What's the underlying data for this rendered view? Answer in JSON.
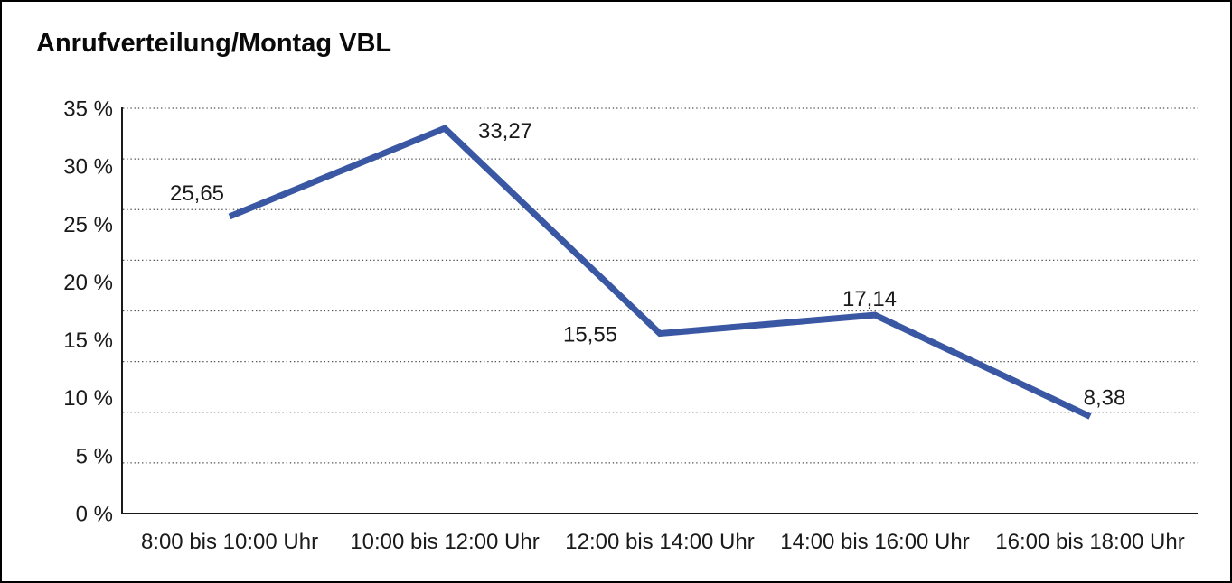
{
  "panel": {
    "title": "Anrufverteilung/Montag VBL"
  },
  "chart_data": {
    "type": "line",
    "title": "Anrufverteilung/Montag VBL",
    "categories": [
      "8:00 bis 10:00 Uhr",
      "10:00 bis 12:00 Uhr",
      "12:00 bis 14:00 Uhr",
      "14:00 bis 16:00 Uhr",
      "16:00 bis 18:00 Uhr"
    ],
    "series": [
      {
        "name": "Anrufverteilung Montag VBL",
        "values": [
          25.65,
          33.27,
          15.55,
          17.14,
          8.38
        ],
        "labels": [
          "25,65",
          "33,27",
          "15,55",
          "17,14",
          "8,38"
        ],
        "color": "#3A57A3"
      }
    ],
    "xlabel": "",
    "ylabel": "",
    "ylim": [
      0,
      35
    ],
    "ytick_step": 5,
    "ytick_labels": [
      "0 %",
      "5 %",
      "10 %",
      "15 %",
      "20 %",
      "25 %",
      "30 %",
      "35 %"
    ],
    "grid": "horizontal-dotted",
    "grid_divisions": 8,
    "legend": "none",
    "colors": {
      "line": "#3A57A3",
      "axis": "#1a1a1a",
      "gridline": "#555555",
      "text": "#1a1a1a"
    }
  }
}
